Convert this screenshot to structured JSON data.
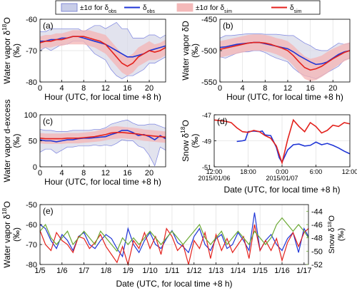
{
  "legend": {
    "entries": [
      {
        "text": "±1σ for δ",
        "sub": "obs",
        "kind": "band",
        "color": "#c8cde8",
        "edge": "#6f78d0"
      },
      {
        "text": "δ",
        "sub": "obs",
        "kind": "line",
        "color": "#1f35d6"
      },
      {
        "text": "±1σ for δ",
        "sub": "sim",
        "kind": "band",
        "color": "#f4b9b9",
        "edge": "#f4b9b9"
      },
      {
        "text": "δ",
        "sub": "sim",
        "kind": "line",
        "color": "#e3211c"
      }
    ]
  },
  "colors": {
    "obs": "#1f35d6",
    "obs_band": "#d8dae8",
    "obs_band_edge": "#7c84e0",
    "sim": "#e3211c",
    "sim_band": "#f4b4b4",
    "snow": "#6aa832"
  },
  "chart_data": [
    {
      "panel": "(a)",
      "type": "line",
      "ylabel": "Water vapor δ18O",
      "yunit": "(‰)",
      "xlabel": "Hour (UTC, for local time +8 h)",
      "xlim": [
        0,
        23
      ],
      "ylim": [
        -80,
        -60
      ],
      "xticks": [
        "0",
        "4",
        "8",
        "12",
        "16",
        "20"
      ],
      "yticks": [
        "-80",
        "-70",
        "-60"
      ],
      "x": [
        0,
        1,
        2,
        3,
        4,
        5,
        6,
        7,
        8,
        9,
        10,
        11,
        12,
        13,
        14,
        15,
        16,
        17,
        18,
        19,
        20,
        21,
        22,
        23
      ],
      "series": [
        {
          "name": "δobs",
          "values": [
            -67,
            -67,
            -66.5,
            -66.5,
            -66,
            -66,
            -65.5,
            -65.5,
            -66,
            -66.5,
            -67,
            -67.5,
            -68,
            -69,
            -70,
            -71,
            -72,
            -72,
            -71.5,
            -71,
            -70,
            -69.5,
            -69,
            -68.5
          ]
        },
        {
          "name": "δsim",
          "values": [
            -67.5,
            -67,
            -67,
            -66.5,
            -66.5,
            -66,
            -65.5,
            -65.5,
            -65.5,
            -66,
            -66.5,
            -67,
            -68,
            -70,
            -72,
            -74,
            -75,
            -74,
            -72,
            -71,
            -70,
            -70.5,
            -70,
            -69
          ]
        }
      ],
      "obs_band": {
        "lower": [
          -70,
          -69,
          -70,
          -69,
          -68,
          -68,
          -67,
          -67,
          -67,
          -69,
          -71,
          -72,
          -73,
          -76,
          -78,
          -79,
          -78,
          -78,
          -77,
          -76,
          -74,
          -74,
          -73,
          -72
        ],
        "upper": [
          -64,
          -64,
          -63,
          -63,
          -63,
          -63,
          -63,
          -63,
          -64,
          -63,
          -62,
          -62,
          -63,
          -62,
          -61,
          -63,
          -63,
          -66,
          -66,
          -66,
          -65,
          -65,
          -66,
          -65
        ]
      },
      "sim_band": {
        "lower": [
          -69.5,
          -69,
          -69,
          -68.5,
          -68.5,
          -68,
          -68,
          -68,
          -68,
          -68.5,
          -69,
          -70,
          -71,
          -73,
          -75,
          -77,
          -78,
          -77,
          -75,
          -74,
          -73,
          -73,
          -72.5,
          -71.5
        ],
        "upper": [
          -65.5,
          -65,
          -65,
          -64.5,
          -64.5,
          -64,
          -63.5,
          -63.5,
          -63.5,
          -63.5,
          -64,
          -64.5,
          -65,
          -67,
          -69,
          -71,
          -72,
          -71,
          -69,
          -68,
          -67,
          -68,
          -67.5,
          -66.5
        ]
      }
    },
    {
      "panel": "(b)",
      "type": "line",
      "ylabel": "Water vapor δD",
      "yunit": "(‰)",
      "xlabel": "Hour (UTC, for local time +8 h)",
      "xlim": [
        0,
        23
      ],
      "ylim": [
        -550,
        -450
      ],
      "xticks": [
        "0",
        "4",
        "8",
        "12",
        "16",
        "20"
      ],
      "yticks": [
        "-550",
        "-500",
        "-450"
      ],
      "x": [
        0,
        1,
        2,
        3,
        4,
        5,
        6,
        7,
        8,
        9,
        10,
        11,
        12,
        13,
        14,
        15,
        16,
        17,
        18,
        19,
        20,
        21,
        22,
        23
      ],
      "series": [
        {
          "name": "δobs",
          "values": [
            -495,
            -494,
            -492,
            -490,
            -489,
            -488,
            -487,
            -487,
            -489,
            -491,
            -493,
            -495,
            -497,
            -502,
            -508,
            -513,
            -518,
            -522,
            -521,
            -518,
            -512,
            -506,
            -502,
            -500
          ]
        },
        {
          "name": "δsim",
          "values": [
            -498,
            -496,
            -494,
            -492,
            -490,
            -488,
            -487,
            -487,
            -488,
            -490,
            -493,
            -496,
            -500,
            -508,
            -518,
            -527,
            -531,
            -529,
            -525,
            -519,
            -513,
            -508,
            -503,
            -500
          ]
        }
      ],
      "obs_band": {
        "lower": [
          -510,
          -512,
          -508,
          -504,
          -502,
          -502,
          -500,
          -500,
          -503,
          -508,
          -512,
          -515,
          -518,
          -528,
          -535,
          -540,
          -542,
          -545,
          -540,
          -535,
          -530,
          -525,
          -515,
          -512
        ],
        "upper": [
          -480,
          -476,
          -476,
          -475,
          -474,
          -473,
          -473,
          -473,
          -474,
          -474,
          -474,
          -475,
          -476,
          -476,
          -482,
          -488,
          -492,
          -498,
          -500,
          -500,
          -494,
          -488,
          -490,
          -488
        ]
      },
      "sim_band": {
        "lower": [
          -511,
          -509,
          -507,
          -505,
          -503,
          -501,
          -500,
          -500,
          -501,
          -503,
          -506,
          -510,
          -515,
          -524,
          -535,
          -545,
          -549,
          -547,
          -542,
          -536,
          -529,
          -523,
          -517,
          -513
        ],
        "upper": [
          -485,
          -483,
          -481,
          -479,
          -477,
          -475,
          -474,
          -474,
          -475,
          -477,
          -480,
          -482,
          -485,
          -492,
          -501,
          -509,
          -513,
          -511,
          -508,
          -502,
          -497,
          -493,
          -489,
          -487
        ]
      }
    },
    {
      "panel": "(c)",
      "type": "line",
      "ylabel": "Water vapor d-excess",
      "yunit": "(‰)",
      "xlabel": "Hour (UTC, for local time +8 h)",
      "xlim": [
        0,
        23
      ],
      "ylim": [
        0,
        100
      ],
      "xticks": [
        "0",
        "4",
        "8",
        "12",
        "16",
        "20"
      ],
      "yticks": [
        "0",
        "50",
        "100"
      ],
      "x": [
        0,
        1,
        2,
        3,
        4,
        5,
        6,
        7,
        8,
        9,
        10,
        11,
        12,
        13,
        14,
        15,
        16,
        17,
        18,
        19,
        20,
        21,
        22,
        23
      ],
      "series": [
        {
          "name": "δobs",
          "values": [
            52,
            50,
            50,
            48,
            50,
            52,
            52,
            54,
            55,
            55,
            56,
            57,
            58,
            62,
            65,
            70,
            70,
            66,
            60,
            62,
            58,
            52,
            60,
            54
          ]
        },
        {
          "name": "δsim",
          "values": [
            55,
            54,
            54,
            54,
            54,
            55,
            55,
            55,
            56,
            57,
            58,
            60,
            62,
            65,
            66,
            66,
            65,
            64,
            63,
            61,
            60,
            59,
            58,
            57
          ]
        }
      ],
      "obs_band": {
        "lower": [
          28,
          34,
          34,
          26,
          32,
          38,
          38,
          40,
          40,
          40,
          42,
          40,
          42,
          40,
          45,
          52,
          50,
          50,
          40,
          36,
          22,
          2,
          38,
          32
        ],
        "upper": [
          72,
          70,
          70,
          68,
          68,
          68,
          70,
          70,
          70,
          70,
          72,
          72,
          75,
          82,
          85,
          88,
          90,
          84,
          80,
          80,
          82,
          82,
          78,
          74
        ]
      },
      "sim_band": {
        "lower": [
          45,
          44,
          44,
          44,
          44,
          45,
          45,
          45,
          46,
          47,
          48,
          49,
          51,
          53,
          54,
          55,
          54,
          53,
          52,
          50,
          49,
          48,
          47,
          46
        ],
        "upper": [
          65,
          64,
          64,
          64,
          64,
          65,
          65,
          65,
          66,
          67,
          68,
          71,
          73,
          77,
          78,
          77,
          76,
          75,
          74,
          72,
          71,
          70,
          69,
          68
        ]
      }
    },
    {
      "panel": "(d)",
      "type": "line",
      "ylabel": "Snow δ18O",
      "yunit": "(‰)",
      "xlabel": "Date (UTC, for local time +8 h)",
      "xlim": [
        12,
        36
      ],
      "ylim": [
        -51,
        -47
      ],
      "xtick_values": [
        12,
        18,
        24,
        30,
        36
      ],
      "xticks": [
        "12:00",
        "18:00",
        "0:00",
        "6:00",
        "12:00"
      ],
      "xticks_second": [
        "2015/01/06",
        "",
        "2015/01/07",
        "",
        ""
      ],
      "yticks": [
        "-51",
        "-49",
        "-47"
      ],
      "series": [
        {
          "name": "δobs",
          "x": [
            16,
            17,
            17.5,
            18,
            19,
            20,
            20.5,
            21,
            22,
            23,
            23.5,
            24,
            25,
            26,
            27,
            28,
            29,
            30,
            31,
            32,
            33,
            34,
            35,
            36
          ],
          "values": [
            -49.05,
            -49.0,
            -48.95,
            -48.3,
            -48.25,
            -48.3,
            -48.25,
            -48.55,
            -48.6,
            -49.5,
            -50.3,
            -50.65,
            -49.7,
            -49.3,
            -49.25,
            -49.4,
            -49.35,
            -49.1,
            -49.3,
            -49.2,
            -49.35,
            -49.55,
            -49.8,
            -50.0
          ]
        },
        {
          "name": "δsim",
          "x": [
            12,
            13,
            14,
            15,
            16,
            17,
            18,
            19,
            20,
            21,
            22,
            23,
            24,
            25,
            26,
            27,
            28,
            29,
            30,
            31,
            32,
            33,
            34,
            35,
            36
          ],
          "values": [
            -47.4,
            -47.45,
            -47.5,
            -47.6,
            -48.0,
            -48.3,
            -48.35,
            -48.2,
            -48.3,
            -48.6,
            -48.8,
            -49.4,
            -50.7,
            -48.9,
            -47.4,
            -47.9,
            -48.3,
            -47.6,
            -47.9,
            -48.4,
            -48.2,
            -47.8,
            -47.9,
            -47.6,
            -47.7
          ]
        }
      ]
    },
    {
      "panel": "(e)",
      "type": "line",
      "ylabel": "Water vapor δ18O",
      "yunit": "(‰)",
      "y2label": "Snow δ18O",
      "y2unit": "(‰)",
      "xlabel": "Date (UTC, for local time +8 h)",
      "xlim": [
        0,
        12.2
      ],
      "ylim": [
        -80,
        -50
      ],
      "y2lim": [
        -52,
        -43
      ],
      "xticks": [
        "1/5",
        "1/6",
        "1/7",
        "1/8",
        "1/9",
        "1/10",
        "1/11",
        "1/12",
        "1/13",
        "1/14",
        "1/15",
        "1/16",
        "1/17"
      ],
      "yticks": [
        "-80",
        "-70",
        "-60",
        "-50"
      ],
      "y2ticks": [
        "-52",
        "-50",
        "-48",
        "-46",
        "-44"
      ],
      "x": [
        0,
        0.25,
        0.5,
        0.75,
        1,
        1.25,
        1.5,
        1.75,
        2,
        2.25,
        2.5,
        2.75,
        3,
        3.25,
        3.5,
        3.75,
        4,
        4.25,
        4.5,
        4.75,
        5,
        5.25,
        5.5,
        5.75,
        6,
        6.25,
        6.5,
        6.75,
        7,
        7.25,
        7.5,
        7.75,
        8,
        8.25,
        8.5,
        8.75,
        9,
        9.25,
        9.5,
        9.75,
        10,
        10.25,
        10.5,
        10.75,
        11,
        11.25,
        11.5,
        11.75,
        12,
        12.2
      ],
      "series": [
        {
          "name": "δobs",
          "axis": "left",
          "values": [
            -60,
            -62,
            -68,
            -72,
            -65,
            -68,
            -73,
            -66,
            -64,
            -70,
            -72,
            -68,
            -65,
            -67,
            -72,
            -76,
            -62,
            -70,
            -74,
            -68,
            -64,
            -70,
            -72,
            -67,
            -63,
            -69,
            -71,
            -74,
            -66,
            -62,
            -70,
            -73,
            -67,
            -65,
            -72,
            -70,
            -64,
            -68,
            -73,
            -54,
            -73,
            -68,
            -65,
            -70,
            -73,
            -67,
            -64,
            -74,
            -62,
            -66
          ]
        },
        {
          "name": "δsim",
          "axis": "left",
          "values": [
            -63,
            -70,
            -73,
            -64,
            -68,
            -70,
            -74,
            -66,
            -67,
            -72,
            -69,
            -65,
            -71,
            -75,
            -79,
            -71,
            -80,
            -68,
            -72,
            -64,
            -72,
            -66,
            -75,
            -62,
            -66,
            -73,
            -70,
            -80,
            -68,
            -72,
            -64,
            -77,
            -65,
            -73,
            -67,
            -74,
            -70,
            -66,
            -77,
            -60,
            -73,
            -68,
            -73,
            -67,
            -78,
            -69,
            -64,
            -71,
            -64,
            -62
          ]
        },
        {
          "name": "Snow δ18O",
          "axis": "right",
          "values": [
            -47,
            -46,
            -48,
            -49,
            -48,
            -47,
            -49,
            -48,
            -47,
            -48,
            -49,
            -47,
            -48,
            -49,
            -50,
            -48,
            -49,
            -48,
            -49,
            -48,
            -47,
            -48,
            -49,
            -48,
            -47,
            -48,
            -49,
            -48,
            -47,
            -46,
            -48,
            -49,
            -48,
            -47,
            -49,
            -48,
            -47,
            -48,
            -49,
            -47,
            -48,
            -49,
            -48,
            -46,
            -45,
            -46,
            -47,
            -46,
            -47,
            -48
          ]
        }
      ]
    }
  ]
}
